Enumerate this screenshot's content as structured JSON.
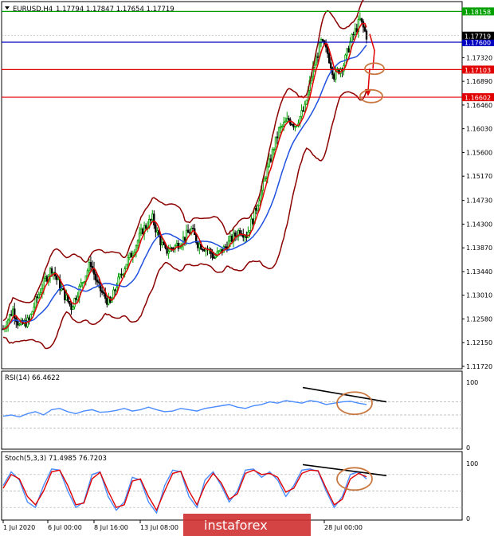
{
  "header": {
    "symbol": "EURUSD,H4",
    "ohlc": "1.17794 1.17847 1.17654 1.17719"
  },
  "colors": {
    "bull": "#00a000",
    "bear": "#000000",
    "ma_fast": "#e00000",
    "ma_slow": "#2050e0",
    "bollinger": "#8b0000",
    "rsi": "#4a8cff",
    "stoch_main": "#4a8cff",
    "stoch_signal": "#e00000",
    "level_green": "#00a000",
    "level_blue": "#0000c0",
    "level_red": "#e00000",
    "annotation": "#c87840"
  },
  "chart_data": [
    {
      "type": "candlestick",
      "symbol": "EURUSD,H4",
      "ylim": [
        1.1172,
        1.1825
      ],
      "y_ticks": [
        "1.18158",
        "1.17719",
        "1.17600",
        "1.17320",
        "1.17103",
        "1.16890",
        "1.16602",
        "1.16460",
        "1.16030",
        "1.15600",
        "1.15170",
        "1.14730",
        "1.14300",
        "1.13870",
        "1.13440",
        "1.13010",
        "1.12580",
        "1.12150",
        "1.11720"
      ],
      "x_ticks": [
        "1 Jul 2020",
        "6 Jul 00:00",
        "8 Jul 16:00",
        "13 Jul 08:00",
        "28 Jul 00:00"
      ],
      "levels": [
        {
          "value": 1.18158,
          "color": "green",
          "label": "1.18158"
        },
        {
          "value": 1.176,
          "color": "blue",
          "label": "1.17600"
        },
        {
          "value": 1.17103,
          "color": "red",
          "label": "1.17103"
        },
        {
          "value": 1.16602,
          "color": "red",
          "label": "1.16602"
        }
      ],
      "current_price": 1.17719,
      "close_path": [
        [
          0,
          1.124
        ],
        [
          6,
          1.1275
        ],
        [
          10,
          1.1245
        ],
        [
          16,
          1.1255
        ],
        [
          20,
          1.129
        ],
        [
          26,
          1.133
        ],
        [
          30,
          1.135
        ],
        [
          36,
          1.131
        ],
        [
          42,
          1.128
        ],
        [
          48,
          1.132
        ],
        [
          54,
          1.136
        ],
        [
          58,
          1.132
        ],
        [
          62,
          1.13
        ],
        [
          66,
          1.1285
        ],
        [
          70,
          1.132
        ],
        [
          76,
          1.136
        ],
        [
          80,
          1.138
        ],
        [
          86,
          1.142
        ],
        [
          92,
          1.144
        ],
        [
          96,
          1.1405
        ],
        [
          100,
          1.138
        ],
        [
          106,
          1.139
        ],
        [
          110,
          1.14
        ],
        [
          116,
          1.142
        ],
        [
          120,
          1.1395
        ],
        [
          126,
          1.1385
        ],
        [
          130,
          1.137
        ],
        [
          136,
          1.1385
        ],
        [
          140,
          1.14
        ],
        [
          146,
          1.142
        ],
        [
          150,
          1.141
        ],
        [
          154,
          1.144
        ],
        [
          160,
          1.15
        ],
        [
          166,
          1.156
        ],
        [
          170,
          1.16
        ],
        [
          176,
          1.162
        ],
        [
          180,
          1.161
        ],
        [
          186,
          1.164
        ],
        [
          190,
          1.17
        ],
        [
          196,
          1.176
        ],
        [
          200,
          1.174
        ],
        [
          204,
          1.17
        ],
        [
          210,
          1.172
        ],
        [
          214,
          1.176
        ],
        [
          220,
          1.18
        ],
        [
          224,
          1.1772
        ]
      ],
      "moving_averages": [
        "fast (red)",
        "slow (blue)"
      ],
      "bollinger_bands": true,
      "annotation": "projected decline from 1.1772 toward 1.1710 and 1.1660"
    },
    {
      "type": "line",
      "name": "RSI(14) 66.4622",
      "ylim": [
        0,
        100
      ],
      "y_ticks": [
        "100",
        "0"
      ],
      "levels": [
        70,
        50,
        30
      ],
      "series": [
        {
          "values": [
            48,
            50,
            47,
            52,
            55,
            50,
            58,
            60,
            55,
            52,
            56,
            58,
            54,
            55,
            57,
            60,
            56,
            58,
            62,
            58,
            55,
            56,
            60,
            58,
            56,
            60,
            62,
            64,
            66,
            62,
            60,
            64,
            66,
            70,
            68,
            72,
            70,
            68,
            72,
            70,
            66,
            68,
            70,
            71,
            68,
            66
          ]
        }
      ],
      "divergence_line": "descending"
    },
    {
      "type": "line",
      "name": "Stoch(5,3,3) 71.4985 76.7203",
      "ylim": [
        0,
        100
      ],
      "y_ticks": [
        "100",
        "0"
      ],
      "levels": [
        80,
        50,
        20
      ],
      "series": [
        {
          "values": [
            60,
            85,
            70,
            30,
            20,
            60,
            90,
            88,
            50,
            20,
            30,
            80,
            85,
            40,
            15,
            30,
            75,
            70,
            30,
            10,
            60,
            88,
            85,
            40,
            20,
            70,
            85,
            60,
            30,
            50,
            88,
            90,
            75,
            85,
            70,
            40,
            60,
            88,
            90,
            86,
            50,
            20,
            40,
            80,
            85,
            72
          ]
        },
        {
          "values": [
            55,
            80,
            72,
            40,
            25,
            50,
            85,
            88,
            60,
            25,
            28,
            72,
            84,
            50,
            20,
            25,
            68,
            72,
            40,
            15,
            50,
            82,
            86,
            50,
            25,
            60,
            82,
            65,
            35,
            45,
            82,
            88,
            80,
            82,
            75,
            48,
            55,
            82,
            88,
            87,
            55,
            25,
            35,
            72,
            82,
            76
          ]
        }
      ],
      "divergence_line": "descending"
    }
  ],
  "watermark": "instaforex"
}
